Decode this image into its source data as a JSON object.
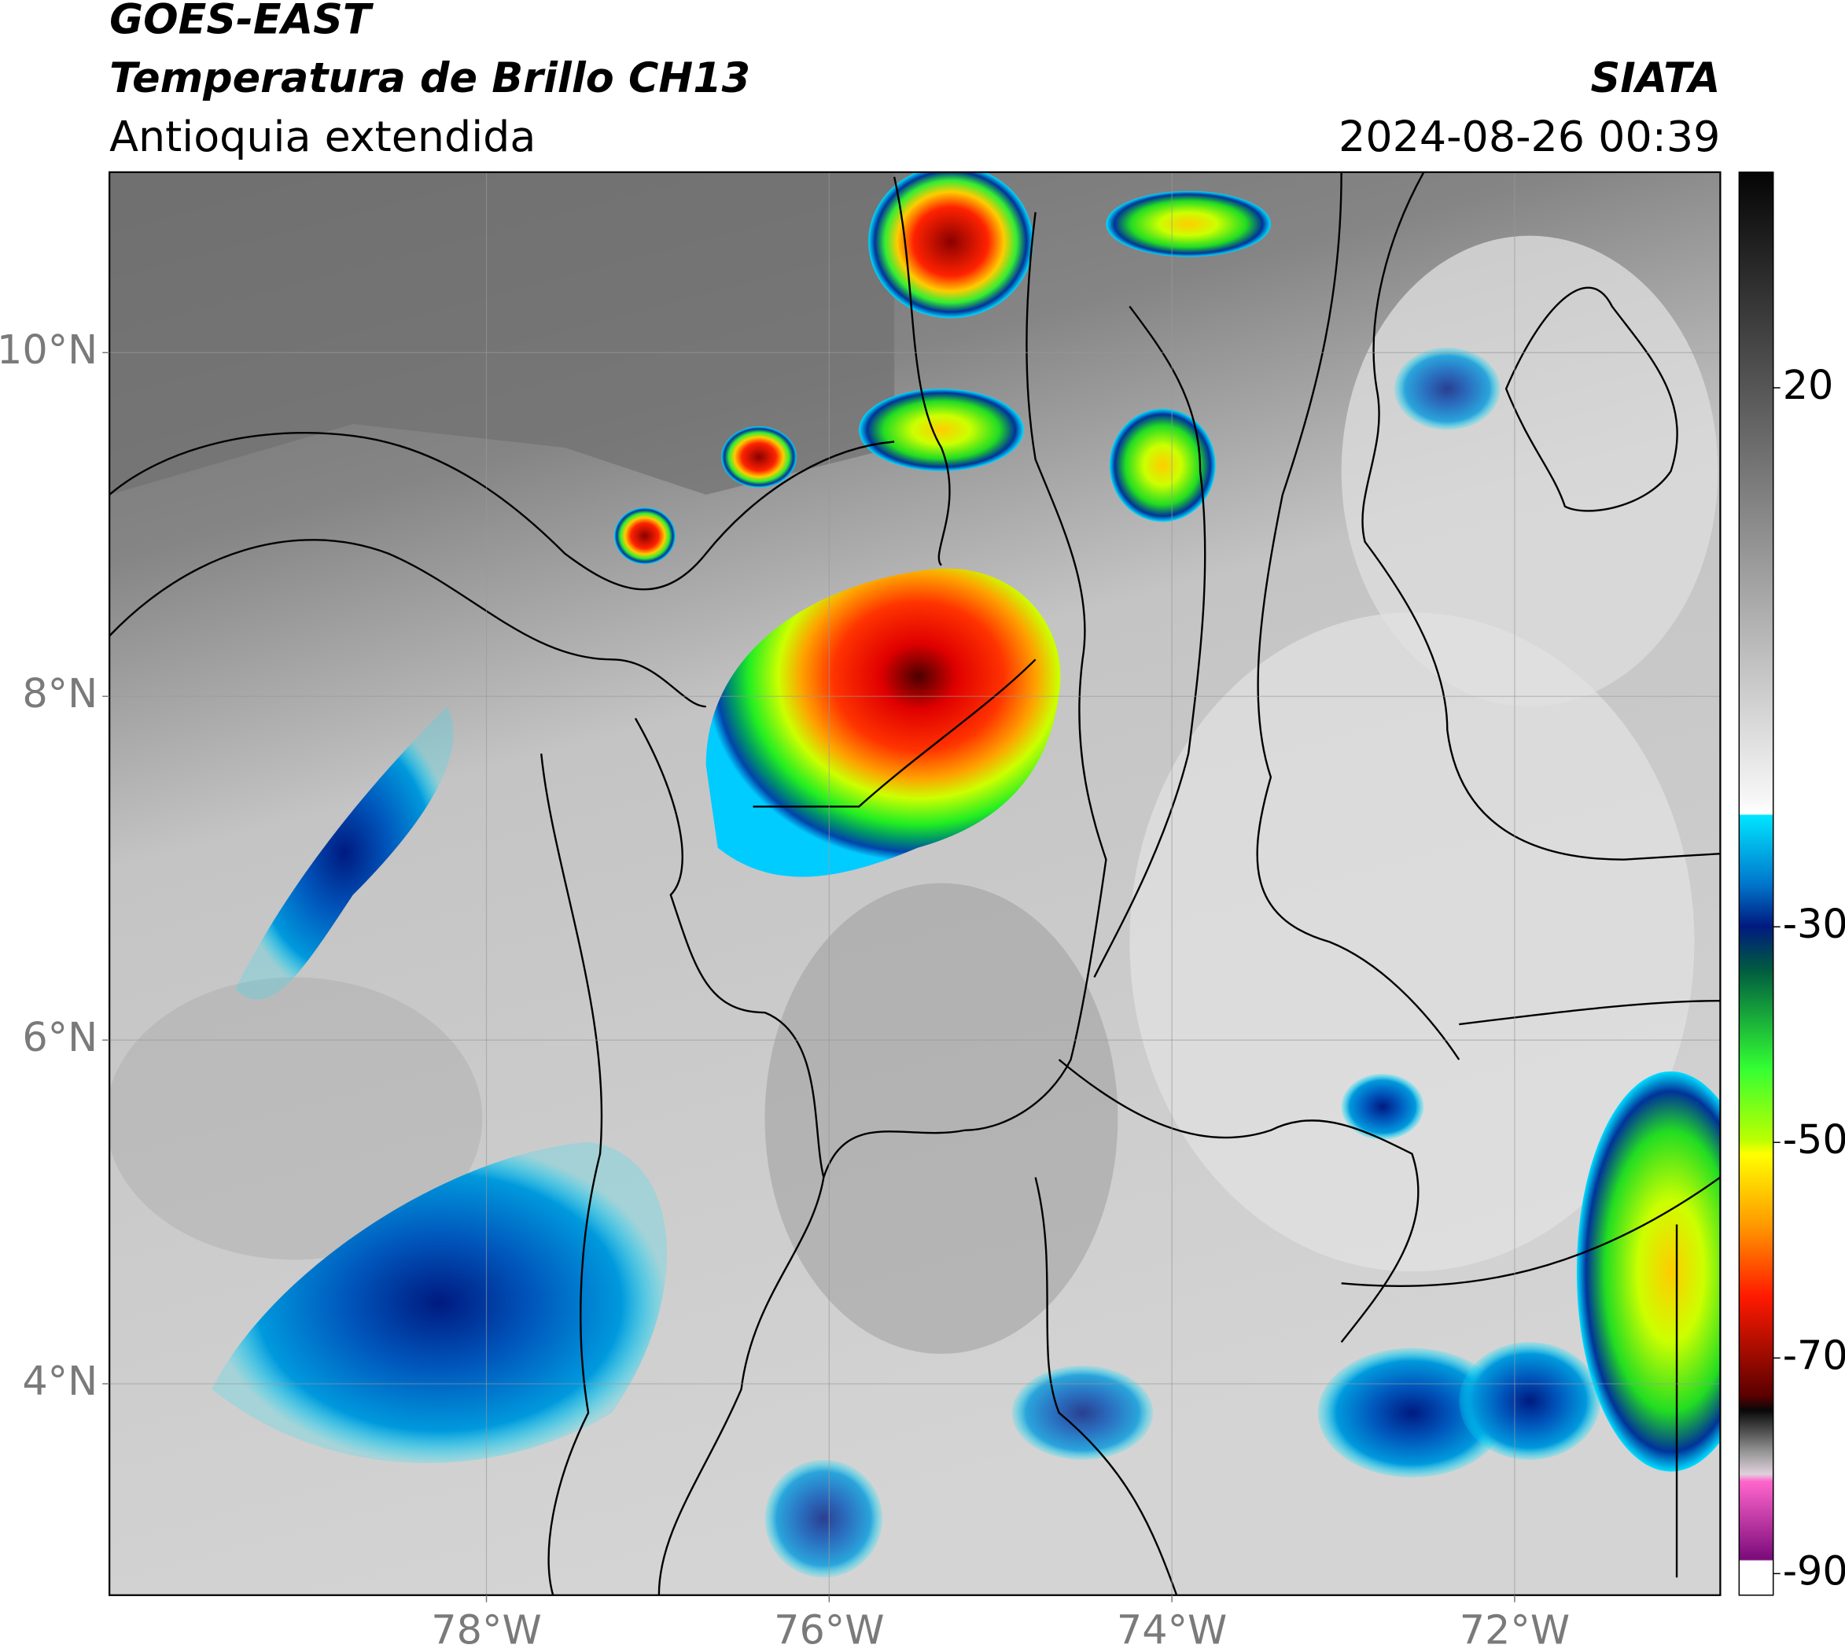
{
  "header": {
    "title_1": "GOES-EAST",
    "title_2": "Temperatura de Brillo CH13",
    "subtitle": "Antioquia extendida",
    "source": "SIATA",
    "datetime": "2024-08-26 00:39"
  },
  "map": {
    "lonlim": [
      -80.2,
      -70.8
    ],
    "latlim": [
      2.77,
      11.05
    ],
    "lon_ticks": [
      {
        "value": -78,
        "label": "78°W"
      },
      {
        "value": -76,
        "label": "76°W"
      },
      {
        "value": -74,
        "label": "74°W"
      },
      {
        "value": -72,
        "label": "72°W"
      }
    ],
    "lat_ticks": [
      {
        "value": 4,
        "label": "4°N"
      },
      {
        "value": 6,
        "label": "6°N"
      },
      {
        "value": 8,
        "label": "8°N"
      },
      {
        "value": 10,
        "label": "10°N"
      }
    ],
    "grid": true
  },
  "colorbar": {
    "lim": [
      -92,
      40
    ],
    "ticks": [
      20,
      -30,
      -50,
      -70,
      -90
    ]
  }
}
